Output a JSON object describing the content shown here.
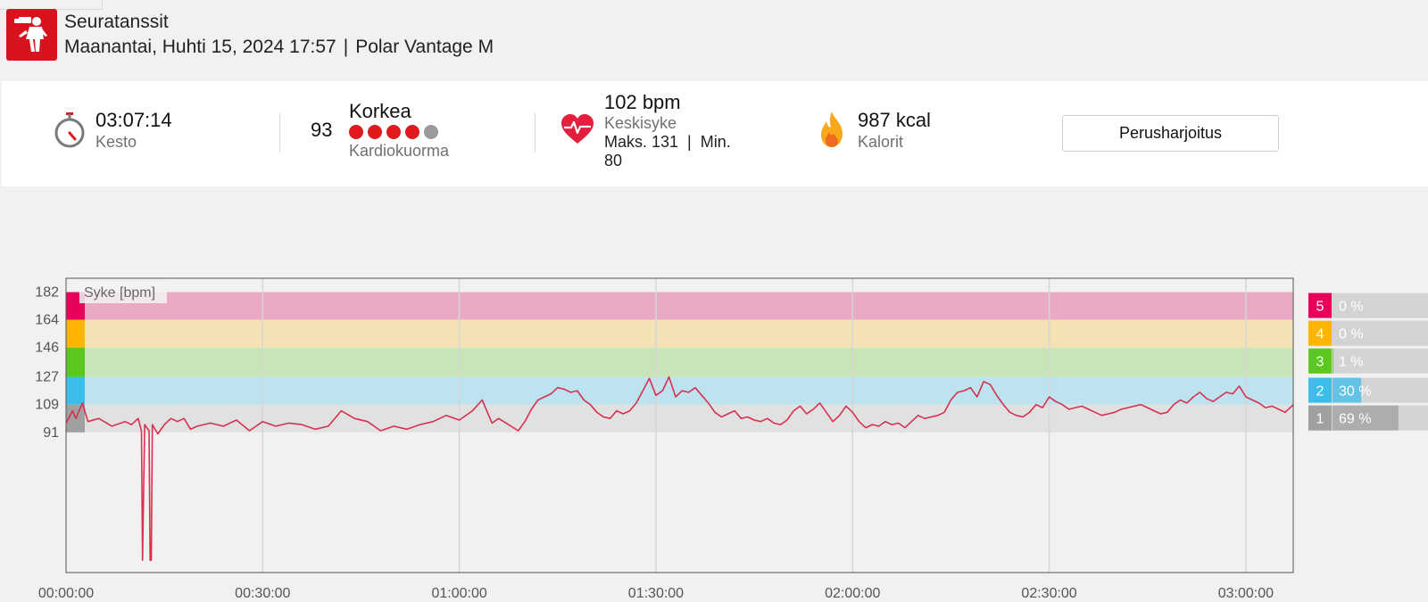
{
  "header": {
    "sport": "Seuratanssit",
    "datetime": "Maanantai, Huhti 15, 2024 17:57",
    "separator": "|",
    "device": "Polar Vantage M",
    "icon": "dancing-couple-icon",
    "icon_color": "#d7131f"
  },
  "summary": {
    "duration": {
      "value": "03:07:14",
      "label": "Kesto",
      "icon": "stopwatch-icon"
    },
    "cardio_load": {
      "score": "93",
      "level": "Korkea",
      "label": "Kardiokuorma",
      "filled_dots": 4,
      "total_dots": 5,
      "dot_color": "#e0191f",
      "empty_dot_color": "#9b9b9b"
    },
    "heart_rate": {
      "value": "102 bpm",
      "label": "Keskisyke",
      "max_min": "Maks. 131  |  Min.",
      "min_value": "80",
      "icon": "heart-icon"
    },
    "calories": {
      "value": "987 kcal",
      "label": "Kalorit",
      "icon": "flame-icon"
    },
    "training_benefit_button": "Perusharjoitus"
  },
  "chart_data": {
    "type": "line",
    "title": "Syke [bpm]",
    "x_unit": "time",
    "x_ticks": [
      "00:00:00",
      "00:30:00",
      "01:00:00",
      "01:30:00",
      "02:00:00",
      "02:30:00",
      "03:00:00"
    ],
    "x_range_seconds": [
      0,
      11234
    ],
    "y_ticks": [
      182,
      164,
      146,
      127,
      109,
      91
    ],
    "y_range": [
      0,
      191
    ],
    "zones": [
      {
        "zone": "5",
        "min": 164,
        "max": 182,
        "color": "#e8005a",
        "band_color": "#ebaac4",
        "percent": "0 %",
        "share": 0.0
      },
      {
        "zone": "4",
        "min": 146,
        "max": 164,
        "color": "#ffb400",
        "band_color": "#f4e1b4",
        "percent": "0 %",
        "share": 0.0
      },
      {
        "zone": "3",
        "min": 127,
        "max": 146,
        "color": "#5ac81e",
        "band_color": "#c9e5b7",
        "percent": "1 %",
        "share": 0.01
      },
      {
        "zone": "2",
        "min": 109,
        "max": 127,
        "color": "#3cbeeb",
        "band_color": "#bde3f0",
        "percent": "30 %",
        "share": 0.3
      },
      {
        "zone": "1",
        "min": 91,
        "max": 109,
        "color": "#a0a0a0",
        "band_color": "#e1e1e1",
        "percent": "69 %",
        "share": 0.69
      }
    ],
    "series": [
      {
        "line_color": "#d8304f",
        "points": [
          [
            0,
            97
          ],
          [
            60,
            105
          ],
          [
            90,
            100
          ],
          [
            150,
            110
          ],
          [
            200,
            98
          ],
          [
            300,
            100
          ],
          [
            420,
            95
          ],
          [
            540,
            98
          ],
          [
            600,
            96
          ],
          [
            660,
            100
          ],
          [
            690,
            92
          ],
          [
            700,
            8
          ],
          [
            720,
            96
          ],
          [
            760,
            92
          ],
          [
            770,
            8
          ],
          [
            780,
            8
          ],
          [
            790,
            96
          ],
          [
            840,
            90
          ],
          [
            900,
            96
          ],
          [
            960,
            100
          ],
          [
            1020,
            98
          ],
          [
            1080,
            100
          ],
          [
            1140,
            93
          ],
          [
            1200,
            95
          ],
          [
            1320,
            97
          ],
          [
            1440,
            95
          ],
          [
            1560,
            99
          ],
          [
            1680,
            92
          ],
          [
            1800,
            98
          ],
          [
            1920,
            95
          ],
          [
            2040,
            97
          ],
          [
            2160,
            96
          ],
          [
            2280,
            93
          ],
          [
            2400,
            95
          ],
          [
            2520,
            105
          ],
          [
            2640,
            100
          ],
          [
            2760,
            98
          ],
          [
            2880,
            92
          ],
          [
            3000,
            95
          ],
          [
            3120,
            93
          ],
          [
            3240,
            96
          ],
          [
            3360,
            98
          ],
          [
            3480,
            102
          ],
          [
            3600,
            99
          ],
          [
            3720,
            105
          ],
          [
            3810,
            112
          ],
          [
            3900,
            97
          ],
          [
            3960,
            100
          ],
          [
            4050,
            96
          ],
          [
            4140,
            92
          ],
          [
            4200,
            98
          ],
          [
            4260,
            106
          ],
          [
            4320,
            112
          ],
          [
            4380,
            114
          ],
          [
            4440,
            116
          ],
          [
            4500,
            120
          ],
          [
            4560,
            119
          ],
          [
            4620,
            117
          ],
          [
            4680,
            118
          ],
          [
            4740,
            112
          ],
          [
            4800,
            109
          ],
          [
            4860,
            104
          ],
          [
            4920,
            101
          ],
          [
            4980,
            100
          ],
          [
            5040,
            105
          ],
          [
            5100,
            103
          ],
          [
            5160,
            105
          ],
          [
            5220,
            110
          ],
          [
            5280,
            118
          ],
          [
            5340,
            126
          ],
          [
            5400,
            115
          ],
          [
            5460,
            118
          ],
          [
            5520,
            127
          ],
          [
            5580,
            114
          ],
          [
            5640,
            118
          ],
          [
            5700,
            117
          ],
          [
            5760,
            120
          ],
          [
            5820,
            115
          ],
          [
            5880,
            110
          ],
          [
            5940,
            104
          ],
          [
            6000,
            101
          ],
          [
            6060,
            103
          ],
          [
            6120,
            105
          ],
          [
            6180,
            100
          ],
          [
            6240,
            101
          ],
          [
            6300,
            99
          ],
          [
            6360,
            98
          ],
          [
            6420,
            100
          ],
          [
            6480,
            97
          ],
          [
            6540,
            96
          ],
          [
            6600,
            99
          ],
          [
            6660,
            105
          ],
          [
            6720,
            108
          ],
          [
            6780,
            103
          ],
          [
            6840,
            106
          ],
          [
            6900,
            110
          ],
          [
            6960,
            104
          ],
          [
            7020,
            98
          ],
          [
            7080,
            102
          ],
          [
            7140,
            108
          ],
          [
            7200,
            104
          ],
          [
            7260,
            98
          ],
          [
            7320,
            94
          ],
          [
            7380,
            96
          ],
          [
            7440,
            95
          ],
          [
            7500,
            98
          ],
          [
            7560,
            96
          ],
          [
            7620,
            97
          ],
          [
            7680,
            94
          ],
          [
            7740,
            98
          ],
          [
            7800,
            102
          ],
          [
            7860,
            100
          ],
          [
            7920,
            101
          ],
          [
            7980,
            102
          ],
          [
            8040,
            104
          ],
          [
            8100,
            112
          ],
          [
            8160,
            117
          ],
          [
            8220,
            118
          ],
          [
            8280,
            120
          ],
          [
            8340,
            114
          ],
          [
            8400,
            124
          ],
          [
            8460,
            122
          ],
          [
            8520,
            115
          ],
          [
            8580,
            109
          ],
          [
            8640,
            104
          ],
          [
            8700,
            102
          ],
          [
            8760,
            101
          ],
          [
            8820,
            104
          ],
          [
            8880,
            109
          ],
          [
            8940,
            107
          ],
          [
            9000,
            114
          ],
          [
            9060,
            111
          ],
          [
            9120,
            109
          ],
          [
            9180,
            106
          ],
          [
            9240,
            107
          ],
          [
            9300,
            108
          ],
          [
            9360,
            106
          ],
          [
            9420,
            104
          ],
          [
            9480,
            102
          ],
          [
            9540,
            103
          ],
          [
            9600,
            104
          ],
          [
            9660,
            106
          ],
          [
            9720,
            107
          ],
          [
            9780,
            108
          ],
          [
            9840,
            109
          ],
          [
            9900,
            107
          ],
          [
            9960,
            105
          ],
          [
            10020,
            103
          ],
          [
            10080,
            104
          ],
          [
            10140,
            109
          ],
          [
            10200,
            112
          ],
          [
            10260,
            110
          ],
          [
            10320,
            114
          ],
          [
            10380,
            117
          ],
          [
            10440,
            113
          ],
          [
            10500,
            111
          ],
          [
            10560,
            114
          ],
          [
            10620,
            117
          ],
          [
            10680,
            116
          ],
          [
            10740,
            121
          ],
          [
            10800,
            114
          ],
          [
            10860,
            112
          ],
          [
            10920,
            110
          ],
          [
            10980,
            107
          ],
          [
            11040,
            108
          ],
          [
            11100,
            106
          ],
          [
            11160,
            104
          ],
          [
            11220,
            108
          ],
          [
            11234,
            109
          ]
        ]
      }
    ],
    "grid": true,
    "legend": "right"
  }
}
